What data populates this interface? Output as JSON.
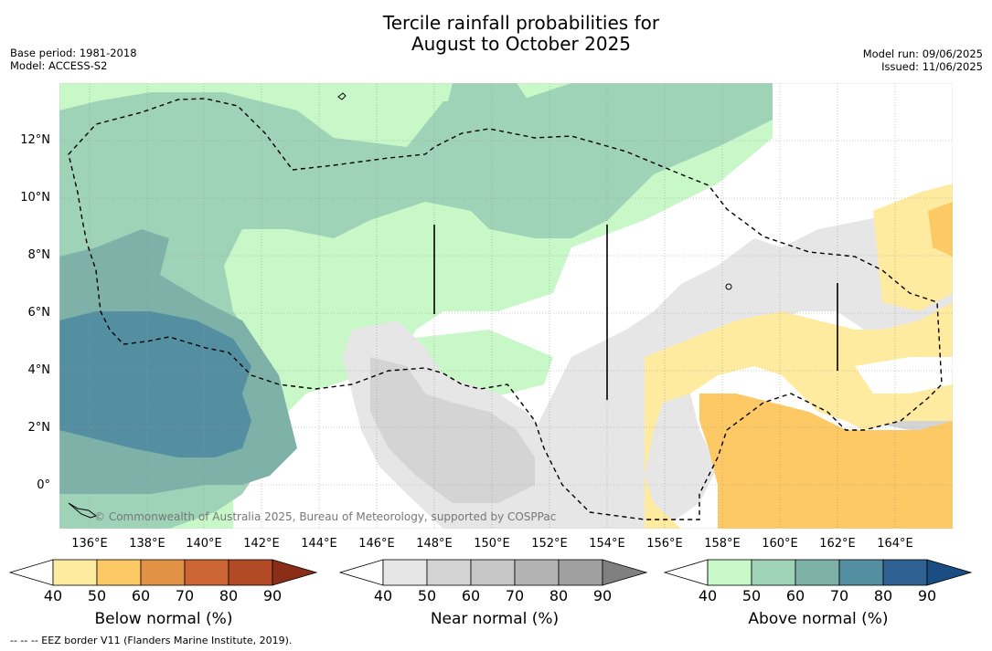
{
  "title": {
    "line1": "Tercile rainfall probabilities for",
    "line2": "August to October 2025"
  },
  "meta_left": {
    "base_period": "Base period: 1981-2018",
    "model": "Model: ACCESS-S2"
  },
  "meta_right": {
    "model_run": "Model run: 09/06/2025",
    "issued": "Issued: 11/06/2025"
  },
  "map": {
    "lat_labels": [
      "12°N",
      "10°N",
      "8°N",
      "6°N",
      "4°N",
      "2°N",
      "0°"
    ],
    "lon_labels": [
      "136°E",
      "138°E",
      "140°E",
      "142°E",
      "144°E",
      "146°E",
      "148°E",
      "150°E",
      "152°E",
      "154°E",
      "156°E",
      "158°E",
      "160°E",
      "162°E",
      "164°E"
    ],
    "copyright": "© Commonwealth of Australia 2025, Bureau of Meteorology, supported by COSPPac"
  },
  "colorbars": {
    "below": {
      "label": "Below normal (%)",
      "ticks": [
        "40",
        "50",
        "60",
        "70",
        "80",
        "90"
      ],
      "colors": [
        "#ffffff",
        "#feeb9f",
        "#fdc964",
        "#e29245",
        "#cd6534",
        "#b24a25",
        "#8b2e18"
      ]
    },
    "near": {
      "label": "Near normal (%)",
      "ticks": [
        "40",
        "50",
        "60",
        "70",
        "80",
        "90"
      ],
      "colors": [
        "#ffffff",
        "#e6e6e6",
        "#d4d4d4",
        "#c6c6c6",
        "#b3b3b3",
        "#a0a0a0",
        "#808080"
      ]
    },
    "above": {
      "label": "Above normal (%)",
      "ticks": [
        "40",
        "50",
        "60",
        "70",
        "80",
        "90"
      ],
      "colors": [
        "#ffffff",
        "#c8f7c8",
        "#9fd3b7",
        "#7eb2a8",
        "#548ea1",
        "#2f6193",
        "#1a4d82"
      ]
    }
  },
  "footnote": "--  --  -- EEZ border V11 (Flanders Marine Institute, 2019)."
}
